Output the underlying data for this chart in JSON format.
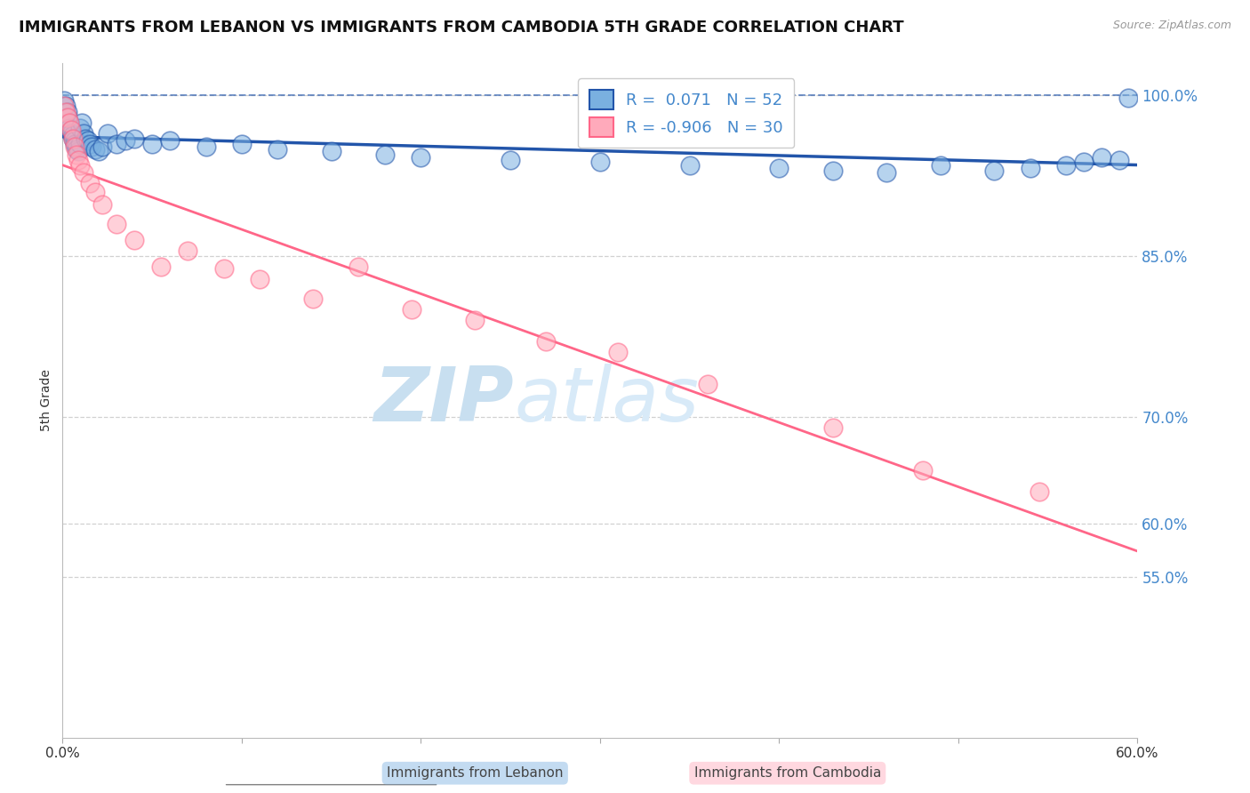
{
  "title": "IMMIGRANTS FROM LEBANON VS IMMIGRANTS FROM CAMBODIA 5TH GRADE CORRELATION CHART",
  "source_text": "Source: ZipAtlas.com",
  "xlabel_lebanon": "Immigrants from Lebanon",
  "xlabel_cambodia": "Immigrants from Cambodia",
  "ylabel": "5th Grade",
  "xlim": [
    0.0,
    0.6
  ],
  "ylim": [
    0.4,
    1.03
  ],
  "yticks": [
    0.55,
    0.6,
    0.7,
    0.85,
    1.0
  ],
  "ytick_labels": [
    "55.0%",
    "60.0%",
    "70.0%",
    "85.0%",
    "100.0%"
  ],
  "lebanon_R": 0.071,
  "lebanon_N": 52,
  "cambodia_R": -0.906,
  "cambodia_N": 30,
  "lebanon_color": "#7ab0e0",
  "cambodia_color": "#ffaabb",
  "lebanon_line_color": "#2255aa",
  "cambodia_line_color": "#ff6688",
  "watermark_zip": "ZIP",
  "watermark_atlas": "atlas",
  "watermark_color": "#d0e8f8",
  "background_color": "#ffffff",
  "grid_color": "#cccccc",
  "axis_label_color": "#4488cc",
  "title_fontsize": 13,
  "label_fontsize": 11,
  "lebanon_x": [
    0.001,
    0.002,
    0.003,
    0.003,
    0.004,
    0.004,
    0.005,
    0.005,
    0.006,
    0.006,
    0.007,
    0.007,
    0.008,
    0.008,
    0.009,
    0.01,
    0.01,
    0.011,
    0.012,
    0.013,
    0.014,
    0.015,
    0.016,
    0.018,
    0.02,
    0.022,
    0.025,
    0.03,
    0.035,
    0.04,
    0.05,
    0.06,
    0.08,
    0.1,
    0.12,
    0.15,
    0.18,
    0.2,
    0.25,
    0.3,
    0.35,
    0.4,
    0.43,
    0.46,
    0.49,
    0.52,
    0.54,
    0.56,
    0.57,
    0.58,
    0.59,
    0.595
  ],
  "lebanon_y": [
    0.995,
    0.99,
    0.985,
    0.98,
    0.975,
    0.97,
    0.968,
    0.965,
    0.963,
    0.96,
    0.958,
    0.955,
    0.953,
    0.95,
    0.948,
    0.97,
    0.955,
    0.975,
    0.965,
    0.96,
    0.958,
    0.955,
    0.952,
    0.95,
    0.948,
    0.952,
    0.965,
    0.955,
    0.958,
    0.96,
    0.955,
    0.958,
    0.952,
    0.955,
    0.95,
    0.948,
    0.945,
    0.942,
    0.94,
    0.938,
    0.935,
    0.932,
    0.93,
    0.928,
    0.935,
    0.93,
    0.932,
    0.935,
    0.938,
    0.942,
    0.94,
    0.998
  ],
  "cambodia_x": [
    0.001,
    0.002,
    0.003,
    0.004,
    0.005,
    0.006,
    0.007,
    0.008,
    0.009,
    0.01,
    0.012,
    0.015,
    0.018,
    0.022,
    0.03,
    0.04,
    0.055,
    0.07,
    0.09,
    0.11,
    0.14,
    0.165,
    0.195,
    0.23,
    0.27,
    0.31,
    0.36,
    0.43,
    0.48,
    0.545
  ],
  "cambodia_y": [
    0.99,
    0.985,
    0.98,
    0.975,
    0.968,
    0.96,
    0.952,
    0.945,
    0.94,
    0.935,
    0.928,
    0.918,
    0.91,
    0.898,
    0.88,
    0.865,
    0.84,
    0.855,
    0.838,
    0.828,
    0.81,
    0.84,
    0.8,
    0.79,
    0.77,
    0.76,
    0.73,
    0.69,
    0.65,
    0.63
  ]
}
